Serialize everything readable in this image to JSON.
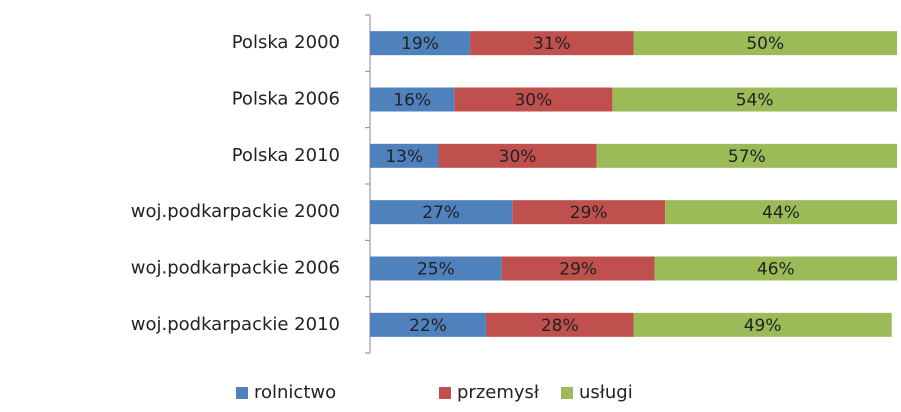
{
  "chart_data": {
    "type": "stacked-bar-horizontal",
    "categories": [
      "Polska 2000",
      "Polska 2006",
      "Polska 2010",
      "woj.podkarpackie 2000",
      "woj.podkarpackie 2006",
      "woj.podkarpackie 2010"
    ],
    "series": [
      {
        "name": "rolnictwo",
        "color": "#4f81bd",
        "values": [
          19,
          16,
          13,
          27,
          25,
          22
        ],
        "value_labels": [
          "19%",
          "16%",
          "13%",
          "27%",
          "25%",
          "22%"
        ]
      },
      {
        "name": "przemysł",
        "color": "#c0504d",
        "values": [
          31,
          30,
          30,
          29,
          29,
          28
        ],
        "value_labels": [
          "31%",
          "30%",
          "30%",
          "29%",
          "29%",
          "28%"
        ]
      },
      {
        "name": "usługi",
        "color": "#9bbb59",
        "values": [
          50,
          54,
          57,
          44,
          46,
          49
        ],
        "value_labels": [
          "50%",
          "54%",
          "57%",
          "44%",
          "46%",
          "49%"
        ]
      }
    ],
    "xlim": [
      0,
      100
    ],
    "legend": "bottom"
  }
}
